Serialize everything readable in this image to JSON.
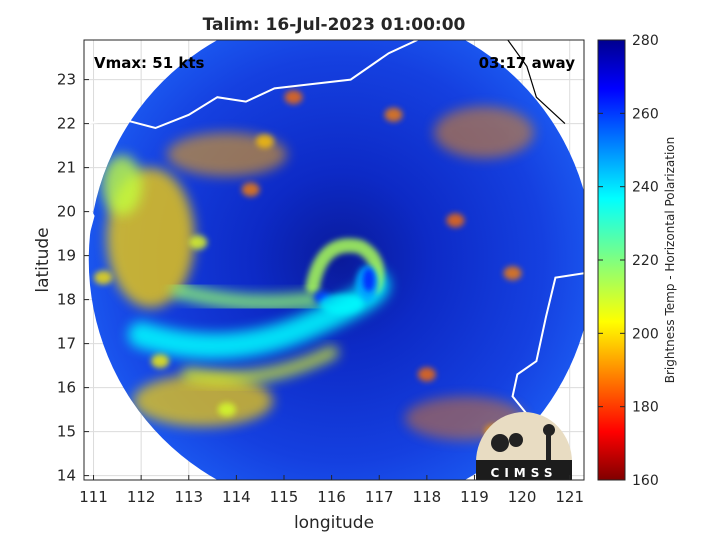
{
  "chart_data": {
    "type": "heatmap",
    "title": "Talim: 16-Jul-2023 01:00:00",
    "xlabel": "longitude",
    "ylabel": "latitude",
    "xlim": [
      110.8,
      121.3
    ],
    "ylim": [
      13.9,
      23.9
    ],
    "xticks": [
      111,
      112,
      113,
      114,
      115,
      116,
      117,
      118,
      119,
      120,
      121
    ],
    "yticks": [
      14,
      15,
      16,
      17,
      18,
      19,
      20,
      21,
      22,
      23
    ],
    "grid": true,
    "annotations": {
      "vmax": "Vmax: 51 kts",
      "away": "03:17 away"
    },
    "colorbar": {
      "label": "Brightness Temp - Horizontal Polarization",
      "range": [
        160,
        280
      ],
      "ticks": [
        160,
        180,
        200,
        220,
        240,
        260,
        280
      ],
      "colormap": "jet"
    },
    "swath": {
      "center": [
        116.2,
        18.9
      ],
      "radius_deg": 5.3
    },
    "storm_center": [
      116.2,
      18.9
    ],
    "field_description_values": {
      "background_K": 265,
      "core_min_K": 180,
      "rainband_K": 205
    },
    "logo_text": "CIMSS"
  },
  "colors": {
    "background": "#ffffff",
    "axes": "#262626",
    "grid": "#dcdcdc",
    "coast": "#ffffff",
    "coast_outside": "#000000"
  }
}
